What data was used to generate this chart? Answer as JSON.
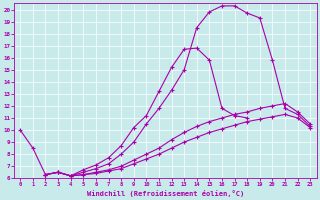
{
  "xlabel": "Windchill (Refroidissement éolien,°C)",
  "ylabel": "",
  "bg_color": "#c8eaea",
  "line_color": "#aa00aa",
  "grid_color": "#b0c8c8",
  "xlim": [
    -0.5,
    23.5
  ],
  "ylim": [
    6,
    20.5
  ],
  "xticks": [
    0,
    1,
    2,
    3,
    4,
    5,
    6,
    7,
    8,
    9,
    10,
    11,
    12,
    13,
    14,
    15,
    16,
    17,
    18,
    19,
    20,
    21,
    22,
    23
  ],
  "yticks": [
    6,
    7,
    8,
    9,
    10,
    11,
    12,
    13,
    14,
    15,
    16,
    17,
    18,
    19,
    20
  ],
  "c1x": [
    0,
    1,
    2,
    3,
    4,
    5,
    6,
    7,
    8,
    9,
    10,
    11,
    12,
    13,
    14,
    15,
    16,
    17,
    18
  ],
  "c1y": [
    10.0,
    8.5,
    6.3,
    6.5,
    6.2,
    6.7,
    7.1,
    7.7,
    8.7,
    10.2,
    11.2,
    13.2,
    15.2,
    16.7,
    16.8,
    15.8,
    11.8,
    11.2,
    11.0
  ],
  "c2x": [
    2,
    3,
    4,
    5,
    6,
    7,
    8,
    9,
    10,
    11,
    12,
    13,
    14,
    15,
    16,
    17,
    18,
    19,
    20,
    21,
    22,
    23
  ],
  "c2y": [
    6.3,
    6.5,
    6.2,
    6.5,
    6.8,
    7.2,
    8.0,
    9.0,
    10.5,
    11.8,
    13.3,
    15.0,
    18.5,
    19.8,
    20.3,
    20.3,
    19.7,
    19.3,
    15.8,
    11.8,
    11.3,
    10.3
  ],
  "c3x": [
    2,
    3,
    4,
    5,
    6,
    7,
    8,
    9,
    10,
    11,
    12,
    13,
    14,
    15,
    16,
    17,
    18,
    19,
    20,
    21,
    22,
    23
  ],
  "c3y": [
    6.3,
    6.5,
    6.2,
    6.3,
    6.5,
    6.7,
    7.0,
    7.5,
    8.0,
    8.5,
    9.2,
    9.8,
    10.3,
    10.7,
    11.0,
    11.3,
    11.5,
    11.8,
    12.0,
    12.2,
    11.5,
    10.5
  ],
  "c4x": [
    2,
    3,
    4,
    5,
    6,
    7,
    8,
    9,
    10,
    11,
    12,
    13,
    14,
    15,
    16,
    17,
    18,
    19,
    20,
    21,
    22,
    23
  ],
  "c4y": [
    6.3,
    6.5,
    6.2,
    6.3,
    6.4,
    6.6,
    6.8,
    7.2,
    7.6,
    8.0,
    8.5,
    9.0,
    9.4,
    9.8,
    10.1,
    10.4,
    10.7,
    10.9,
    11.1,
    11.3,
    11.0,
    10.2
  ]
}
